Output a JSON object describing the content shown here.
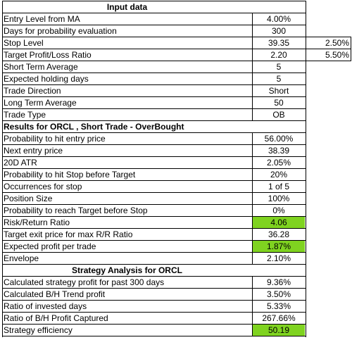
{
  "title": "Input data",
  "inputs": [
    {
      "label": "Entry Level from MA",
      "value": "4.00%"
    },
    {
      "label": "Days for probability evaluation",
      "value": "300"
    },
    {
      "label": "Stop Level",
      "value": "39.35",
      "side": "2.50%"
    },
    {
      "label": "Target Profit/Loss Ratio",
      "value": "2.20",
      "side": "5.50%"
    },
    {
      "label": "Short Term Average",
      "value": "5"
    },
    {
      "label": "Expected holding days",
      "value": "5"
    },
    {
      "label": "Trade Direction",
      "value": "Short"
    },
    {
      "label": "Long Term Average",
      "value": "50"
    },
    {
      "label": "Trade Type",
      "value": "OB"
    }
  ],
  "results_header": "Results for ORCL , Short Trade - OverBought",
  "results": [
    {
      "label": "Probability to hit entry price",
      "value": "56.00%"
    },
    {
      "label": "Next entry price",
      "value": "38.39"
    },
    {
      "label": "20D ATR",
      "value": "2.05%"
    },
    {
      "label": "Probability to hit Stop before Target",
      "value": "20%"
    },
    {
      "label": "Occurrences for stop",
      "value": "1 of 5"
    },
    {
      "label": "Position Size",
      "value": "100%"
    },
    {
      "label": "Probability to reach Target before Stop",
      "value": "0%"
    },
    {
      "label": "Risk/Return Ratio",
      "value": "4.06",
      "highlight": true
    },
    {
      "label": "Target exit price for max R/R Ratio",
      "value": "36.28"
    },
    {
      "label": "Expected profit per trade",
      "value": "1.87%",
      "highlight": true
    },
    {
      "label": "Envelope",
      "value": "2.10%"
    }
  ],
  "strategy_header": "Strategy Analysis for ORCL",
  "strategy": [
    {
      "label": "Calculated strategy profit for past 300 days",
      "value": "9.36%"
    },
    {
      "label": "Calculated B/H Trend profit",
      "value": "3.50%"
    },
    {
      "label": "Ratio of invested days",
      "value": "5.33%"
    },
    {
      "label": "Ratio of B/H Profit Captured",
      "value": "267.66%"
    },
    {
      "label": "Strategy efficiency",
      "value": "50.19",
      "highlight": true
    }
  ],
  "colors": {
    "highlight": "#7fd320",
    "grid": "#000000"
  }
}
